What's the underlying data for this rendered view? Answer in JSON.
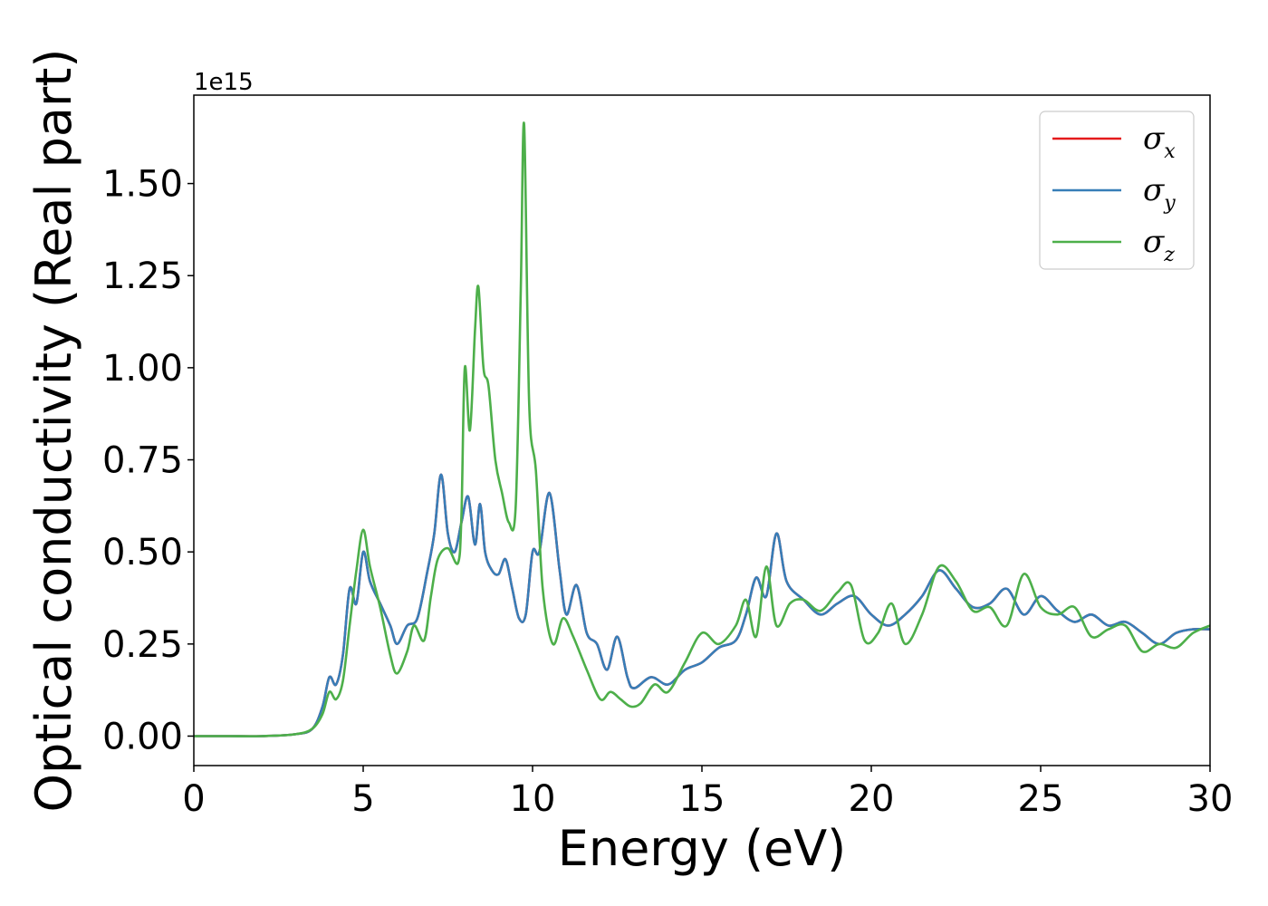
{
  "chart_data": {
    "type": "line",
    "xlabel": "Energy (eV)",
    "ylabel": "Optical conductivity (Real part)",
    "y_offset_label": "1e15",
    "xlim": [
      0,
      30
    ],
    "ylim": [
      -0.08,
      1.74
    ],
    "x_ticks": [
      0,
      5,
      10,
      15,
      20,
      25,
      30
    ],
    "x_tick_labels": [
      "0",
      "5",
      "10",
      "15",
      "20",
      "25",
      "30"
    ],
    "y_ticks": [
      0.0,
      0.25,
      0.5,
      0.75,
      1.0,
      1.25,
      1.5
    ],
    "y_tick_labels": [
      "0.00",
      "0.25",
      "0.50",
      "0.75",
      "1.00",
      "1.25",
      "1.50"
    ],
    "grid": false,
    "legend_position": "top-right",
    "series": [
      {
        "name": "σx",
        "symbol": "σ",
        "subscript": "x",
        "color": "#e41a1c",
        "x": [
          0,
          1,
          2,
          3,
          3.5,
          3.8,
          4.0,
          4.2,
          4.4,
          4.6,
          4.8,
          5.0,
          5.2,
          5.5,
          5.8,
          6.0,
          6.3,
          6.6,
          6.9,
          7.1,
          7.3,
          7.5,
          7.7,
          7.9,
          8.1,
          8.3,
          8.45,
          8.6,
          8.8,
          9.0,
          9.2,
          9.4,
          9.6,
          9.8,
          10.0,
          10.2,
          10.5,
          10.8,
          11.0,
          11.3,
          11.6,
          11.9,
          12.2,
          12.5,
          12.8,
          13.0,
          13.5,
          14.0,
          14.5,
          15.0,
          15.5,
          16.0,
          16.3,
          16.6,
          16.9,
          17.2,
          17.5,
          18.0,
          18.5,
          19.0,
          19.5,
          20.0,
          20.5,
          21.0,
          21.5,
          22.0,
          22.5,
          23.0,
          23.5,
          24.0,
          24.5,
          25.0,
          25.5,
          26.0,
          26.5,
          27.0,
          27.5,
          28.0,
          28.5,
          29.0,
          29.5,
          30.0
        ],
        "values": [
          0,
          0,
          0,
          0.005,
          0.02,
          0.08,
          0.16,
          0.14,
          0.22,
          0.4,
          0.36,
          0.5,
          0.42,
          0.36,
          0.3,
          0.25,
          0.3,
          0.32,
          0.45,
          0.55,
          0.71,
          0.55,
          0.5,
          0.58,
          0.65,
          0.52,
          0.63,
          0.5,
          0.45,
          0.44,
          0.48,
          0.4,
          0.32,
          0.33,
          0.5,
          0.5,
          0.66,
          0.45,
          0.33,
          0.41,
          0.28,
          0.25,
          0.18,
          0.27,
          0.16,
          0.13,
          0.16,
          0.14,
          0.18,
          0.2,
          0.24,
          0.26,
          0.33,
          0.43,
          0.38,
          0.55,
          0.42,
          0.37,
          0.33,
          0.36,
          0.38,
          0.33,
          0.3,
          0.33,
          0.38,
          0.45,
          0.4,
          0.35,
          0.36,
          0.4,
          0.33,
          0.38,
          0.34,
          0.31,
          0.33,
          0.3,
          0.31,
          0.28,
          0.25,
          0.28,
          0.29,
          0.29
        ]
      },
      {
        "name": "σy",
        "symbol": "σ",
        "subscript": "y",
        "color": "#377eb8",
        "x": [
          0,
          1,
          2,
          3,
          3.5,
          3.8,
          4.0,
          4.2,
          4.4,
          4.6,
          4.8,
          5.0,
          5.2,
          5.5,
          5.8,
          6.0,
          6.3,
          6.6,
          6.9,
          7.1,
          7.3,
          7.5,
          7.7,
          7.9,
          8.1,
          8.3,
          8.45,
          8.6,
          8.8,
          9.0,
          9.2,
          9.4,
          9.6,
          9.8,
          10.0,
          10.2,
          10.5,
          10.8,
          11.0,
          11.3,
          11.6,
          11.9,
          12.2,
          12.5,
          12.8,
          13.0,
          13.5,
          14.0,
          14.5,
          15.0,
          15.5,
          16.0,
          16.3,
          16.6,
          16.9,
          17.2,
          17.5,
          18.0,
          18.5,
          19.0,
          19.5,
          20.0,
          20.5,
          21.0,
          21.5,
          22.0,
          22.5,
          23.0,
          23.5,
          24.0,
          24.5,
          25.0,
          25.5,
          26.0,
          26.5,
          27.0,
          27.5,
          28.0,
          28.5,
          29.0,
          29.5,
          30.0
        ],
        "values": [
          0,
          0,
          0,
          0.005,
          0.02,
          0.08,
          0.16,
          0.14,
          0.22,
          0.4,
          0.36,
          0.5,
          0.42,
          0.36,
          0.3,
          0.25,
          0.3,
          0.32,
          0.45,
          0.55,
          0.71,
          0.55,
          0.5,
          0.58,
          0.65,
          0.52,
          0.63,
          0.5,
          0.45,
          0.44,
          0.48,
          0.4,
          0.32,
          0.33,
          0.5,
          0.5,
          0.66,
          0.45,
          0.33,
          0.41,
          0.28,
          0.25,
          0.18,
          0.27,
          0.16,
          0.13,
          0.16,
          0.14,
          0.18,
          0.2,
          0.24,
          0.26,
          0.33,
          0.43,
          0.38,
          0.55,
          0.42,
          0.37,
          0.33,
          0.36,
          0.38,
          0.33,
          0.3,
          0.33,
          0.38,
          0.45,
          0.4,
          0.35,
          0.36,
          0.4,
          0.33,
          0.38,
          0.34,
          0.31,
          0.33,
          0.3,
          0.31,
          0.28,
          0.25,
          0.28,
          0.29,
          0.29
        ]
      },
      {
        "name": "σz",
        "symbol": "σ",
        "subscript": "z",
        "color": "#4daf4a",
        "x": [
          0,
          1,
          2,
          3,
          3.5,
          3.8,
          4.0,
          4.2,
          4.4,
          4.6,
          4.8,
          5.0,
          5.2,
          5.5,
          5.8,
          6.0,
          6.3,
          6.5,
          6.8,
          7.0,
          7.2,
          7.5,
          7.8,
          7.9,
          8.0,
          8.15,
          8.3,
          8.4,
          8.55,
          8.7,
          8.9,
          9.1,
          9.3,
          9.5,
          9.65,
          9.75,
          9.9,
          10.1,
          10.3,
          10.6,
          10.9,
          11.2,
          11.6,
          12.0,
          12.3,
          12.6,
          12.9,
          13.2,
          13.6,
          14.0,
          14.5,
          15.0,
          15.5,
          16.0,
          16.3,
          16.6,
          16.9,
          17.2,
          17.6,
          18.0,
          18.5,
          19.0,
          19.4,
          19.8,
          20.2,
          20.6,
          21.0,
          21.5,
          22.0,
          22.5,
          23.0,
          23.5,
          24.0,
          24.5,
          25.0,
          25.5,
          26.0,
          26.5,
          27.0,
          27.5,
          28.0,
          28.5,
          29.0,
          29.5,
          30.0
        ],
        "values": [
          0,
          0,
          0,
          0.005,
          0.02,
          0.06,
          0.12,
          0.1,
          0.15,
          0.3,
          0.45,
          0.56,
          0.46,
          0.35,
          0.22,
          0.17,
          0.23,
          0.3,
          0.26,
          0.38,
          0.48,
          0.51,
          0.47,
          0.6,
          1.0,
          0.83,
          1.1,
          1.22,
          1.0,
          0.95,
          0.75,
          0.66,
          0.58,
          0.62,
          1.2,
          1.66,
          0.9,
          0.72,
          0.4,
          0.25,
          0.32,
          0.27,
          0.18,
          0.1,
          0.12,
          0.1,
          0.08,
          0.09,
          0.14,
          0.12,
          0.2,
          0.28,
          0.25,
          0.3,
          0.37,
          0.27,
          0.46,
          0.3,
          0.36,
          0.37,
          0.34,
          0.39,
          0.41,
          0.26,
          0.28,
          0.36,
          0.25,
          0.33,
          0.46,
          0.42,
          0.34,
          0.35,
          0.3,
          0.44,
          0.35,
          0.33,
          0.35,
          0.27,
          0.29,
          0.3,
          0.23,
          0.25,
          0.24,
          0.28,
          0.3
        ]
      }
    ]
  }
}
